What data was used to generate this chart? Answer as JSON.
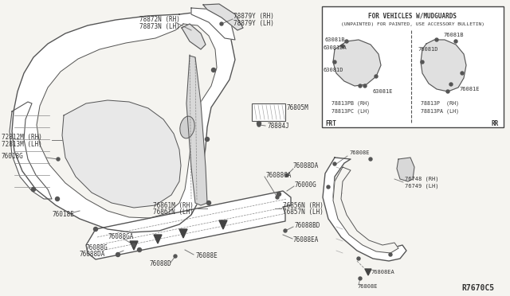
{
  "bg_color": "#f5f4f0",
  "ref_code": "R7670C5",
  "inset_title_line1": "FOR VEHICLES W/MUDGUARDS",
  "inset_title_line2": "(UNPAINTED) FOR PAINTED, USE ACCESSORY BULLETIN)",
  "frt_label": "FRT",
  "rr_label": "RR",
  "line_color": "#555555",
  "text_color": "#333333",
  "white": "#ffffff",
  "light_gray": "#cccccc"
}
